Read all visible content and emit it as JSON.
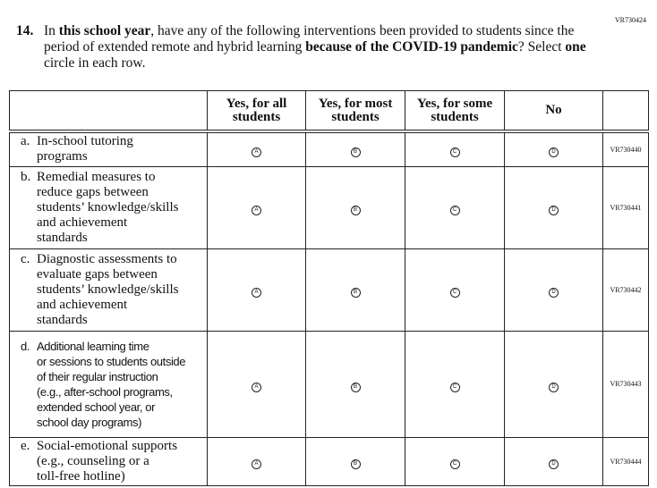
{
  "page_code": "VR730424",
  "question": {
    "number": "14.",
    "parts": [
      {
        "t": "In ",
        "b": false
      },
      {
        "t": "this school year",
        "b": true
      },
      {
        "t": ", have any of the following interventions been provided to students since the period of extended remote and hybrid learning ",
        "b": false
      },
      {
        "t": "because of the COVID-19 pandemic",
        "b": true
      },
      {
        "t": "? Select ",
        "b": false
      },
      {
        "t": "one",
        "b": true
      },
      {
        "t": " circle in each row.",
        "b": false
      }
    ]
  },
  "columns": [
    "Yes, for all students",
    "Yes, for most students",
    "Yes, for some students",
    "No"
  ],
  "bubble_letters": [
    "A",
    "B",
    "C",
    "D"
  ],
  "rows": [
    {
      "letter": "a.",
      "lines": [
        "In-school tutoring",
        "programs"
      ],
      "code": "VR730440",
      "sans": false,
      "h": 39
    },
    {
      "letter": "b.",
      "lines": [
        "Remedial measures to",
        "reduce gaps between",
        "students’ knowledge/skills",
        "and achievement",
        "standards"
      ],
      "code": "VR730441",
      "sans": false,
      "h": 92
    },
    {
      "letter": "c.",
      "lines": [
        "Diagnostic assessments to",
        "evaluate gaps between",
        "students’ knowledge/skills",
        "and achievement",
        "standards"
      ],
      "code": "VR730442",
      "sans": false,
      "h": 92
    },
    {
      "letter": "d.",
      "lines": [
        "Additional learning time",
        "or sessions to students outside",
        "of their regular instruction",
        "(e.g., after-school programs,",
        "extended school year, or",
        "school day programs)"
      ],
      "code": "VR730443",
      "sans": true,
      "h": 119
    },
    {
      "letter": "e.",
      "lines": [
        "Social-emotional supports",
        "(e.g., counseling or a",
        "toll-free hotline)"
      ],
      "code": "VR730444",
      "sans": false,
      "h": 46
    }
  ]
}
